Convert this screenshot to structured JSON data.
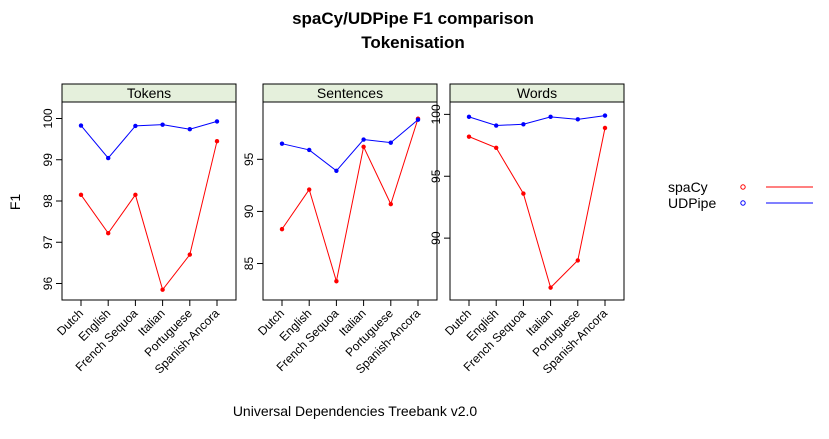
{
  "title": "spaCy/UDPipe F1 comparison",
  "subtitle": "Tokenisation",
  "xlabel": "Universal Dependencies Treebank v2.0",
  "ylabel": "F1",
  "legend": {
    "placement": "right",
    "items": [
      {
        "name": "spaCy",
        "color": "#ff0000"
      },
      {
        "name": "UDPipe",
        "color": "#0000ff"
      }
    ]
  },
  "chart_data": {
    "type": "line",
    "title": "spaCy/UDPipe F1 comparison",
    "subtitle": "Tokenisation",
    "xlabel": "Universal Dependencies Treebank v2.0",
    "ylabel": "F1",
    "categories": [
      "Dutch",
      "English",
      "French Sequoa",
      "Italian",
      "Portuguese",
      "Spanish-Ancora"
    ],
    "grid": false,
    "legend_placement": "right",
    "panels": [
      {
        "name": "Tokens",
        "ylim": [
          95.6,
          100.4
        ],
        "yticks": [
          96,
          97,
          98,
          99,
          100
        ],
        "series": [
          {
            "name": "spaCy",
            "color": "#ff0000",
            "values": [
              98.15,
              97.22,
              98.15,
              95.85,
              96.7,
              99.45
            ]
          },
          {
            "name": "UDPipe",
            "color": "#0000ff",
            "values": [
              99.83,
              99.04,
              99.82,
              99.85,
              99.74,
              99.93
            ]
          }
        ]
      },
      {
        "name": "Sentences",
        "ylim": [
          81.5,
          100.5
        ],
        "yticks": [
          85,
          90,
          95
        ],
        "series": [
          {
            "name": "spaCy",
            "color": "#ff0000",
            "values": [
              88.3,
              92.1,
              83.3,
              96.2,
              90.7,
              98.9
            ]
          },
          {
            "name": "UDPipe",
            "color": "#0000ff",
            "values": [
              96.5,
              95.9,
              93.9,
              96.9,
              96.6,
              98.8
            ]
          }
        ]
      },
      {
        "name": "Words",
        "ylim": [
          85.0,
          101.0
        ],
        "yticks": [
          90,
          95,
          100
        ],
        "series": [
          {
            "name": "spaCy",
            "color": "#ff0000",
            "values": [
              98.2,
              97.3,
              93.6,
              86.0,
              88.2,
              98.9
            ]
          },
          {
            "name": "UDPipe",
            "color": "#0000ff",
            "values": [
              99.8,
              99.1,
              99.2,
              99.8,
              99.6,
              99.9
            ]
          }
        ]
      }
    ]
  }
}
